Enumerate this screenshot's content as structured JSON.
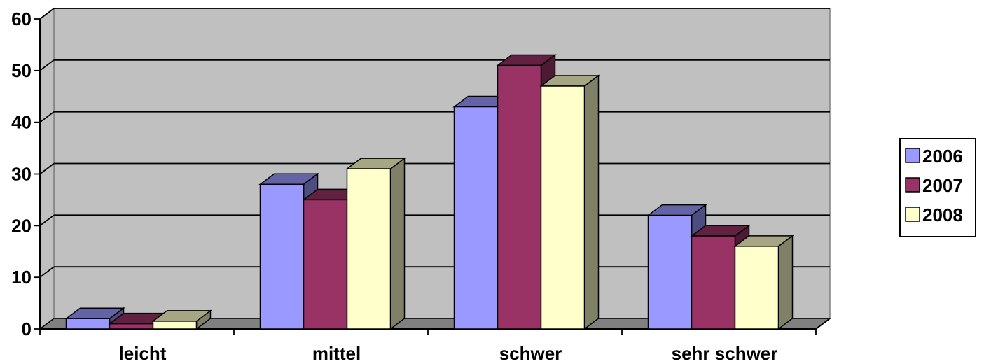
{
  "chart_data": {
    "type": "bar",
    "categories": [
      "leicht",
      "mittel",
      "schwer",
      "sehr schwer"
    ],
    "series": [
      {
        "name": "2006",
        "values": [
          2,
          28,
          43,
          22
        ],
        "color": "#9999ff"
      },
      {
        "name": "2007",
        "values": [
          1,
          25,
          51,
          18
        ],
        "color": "#993366"
      },
      {
        "name": "2008",
        "values": [
          1.5,
          31,
          47,
          16
        ],
        "color": "#ffffcc"
      }
    ],
    "yticks": [
      "0",
      "10",
      "20",
      "30",
      "40",
      "50",
      "60"
    ],
    "ylim": [
      0,
      60
    ],
    "grid": true,
    "legend_position": "right",
    "wall_color": "#c0c0c0"
  }
}
